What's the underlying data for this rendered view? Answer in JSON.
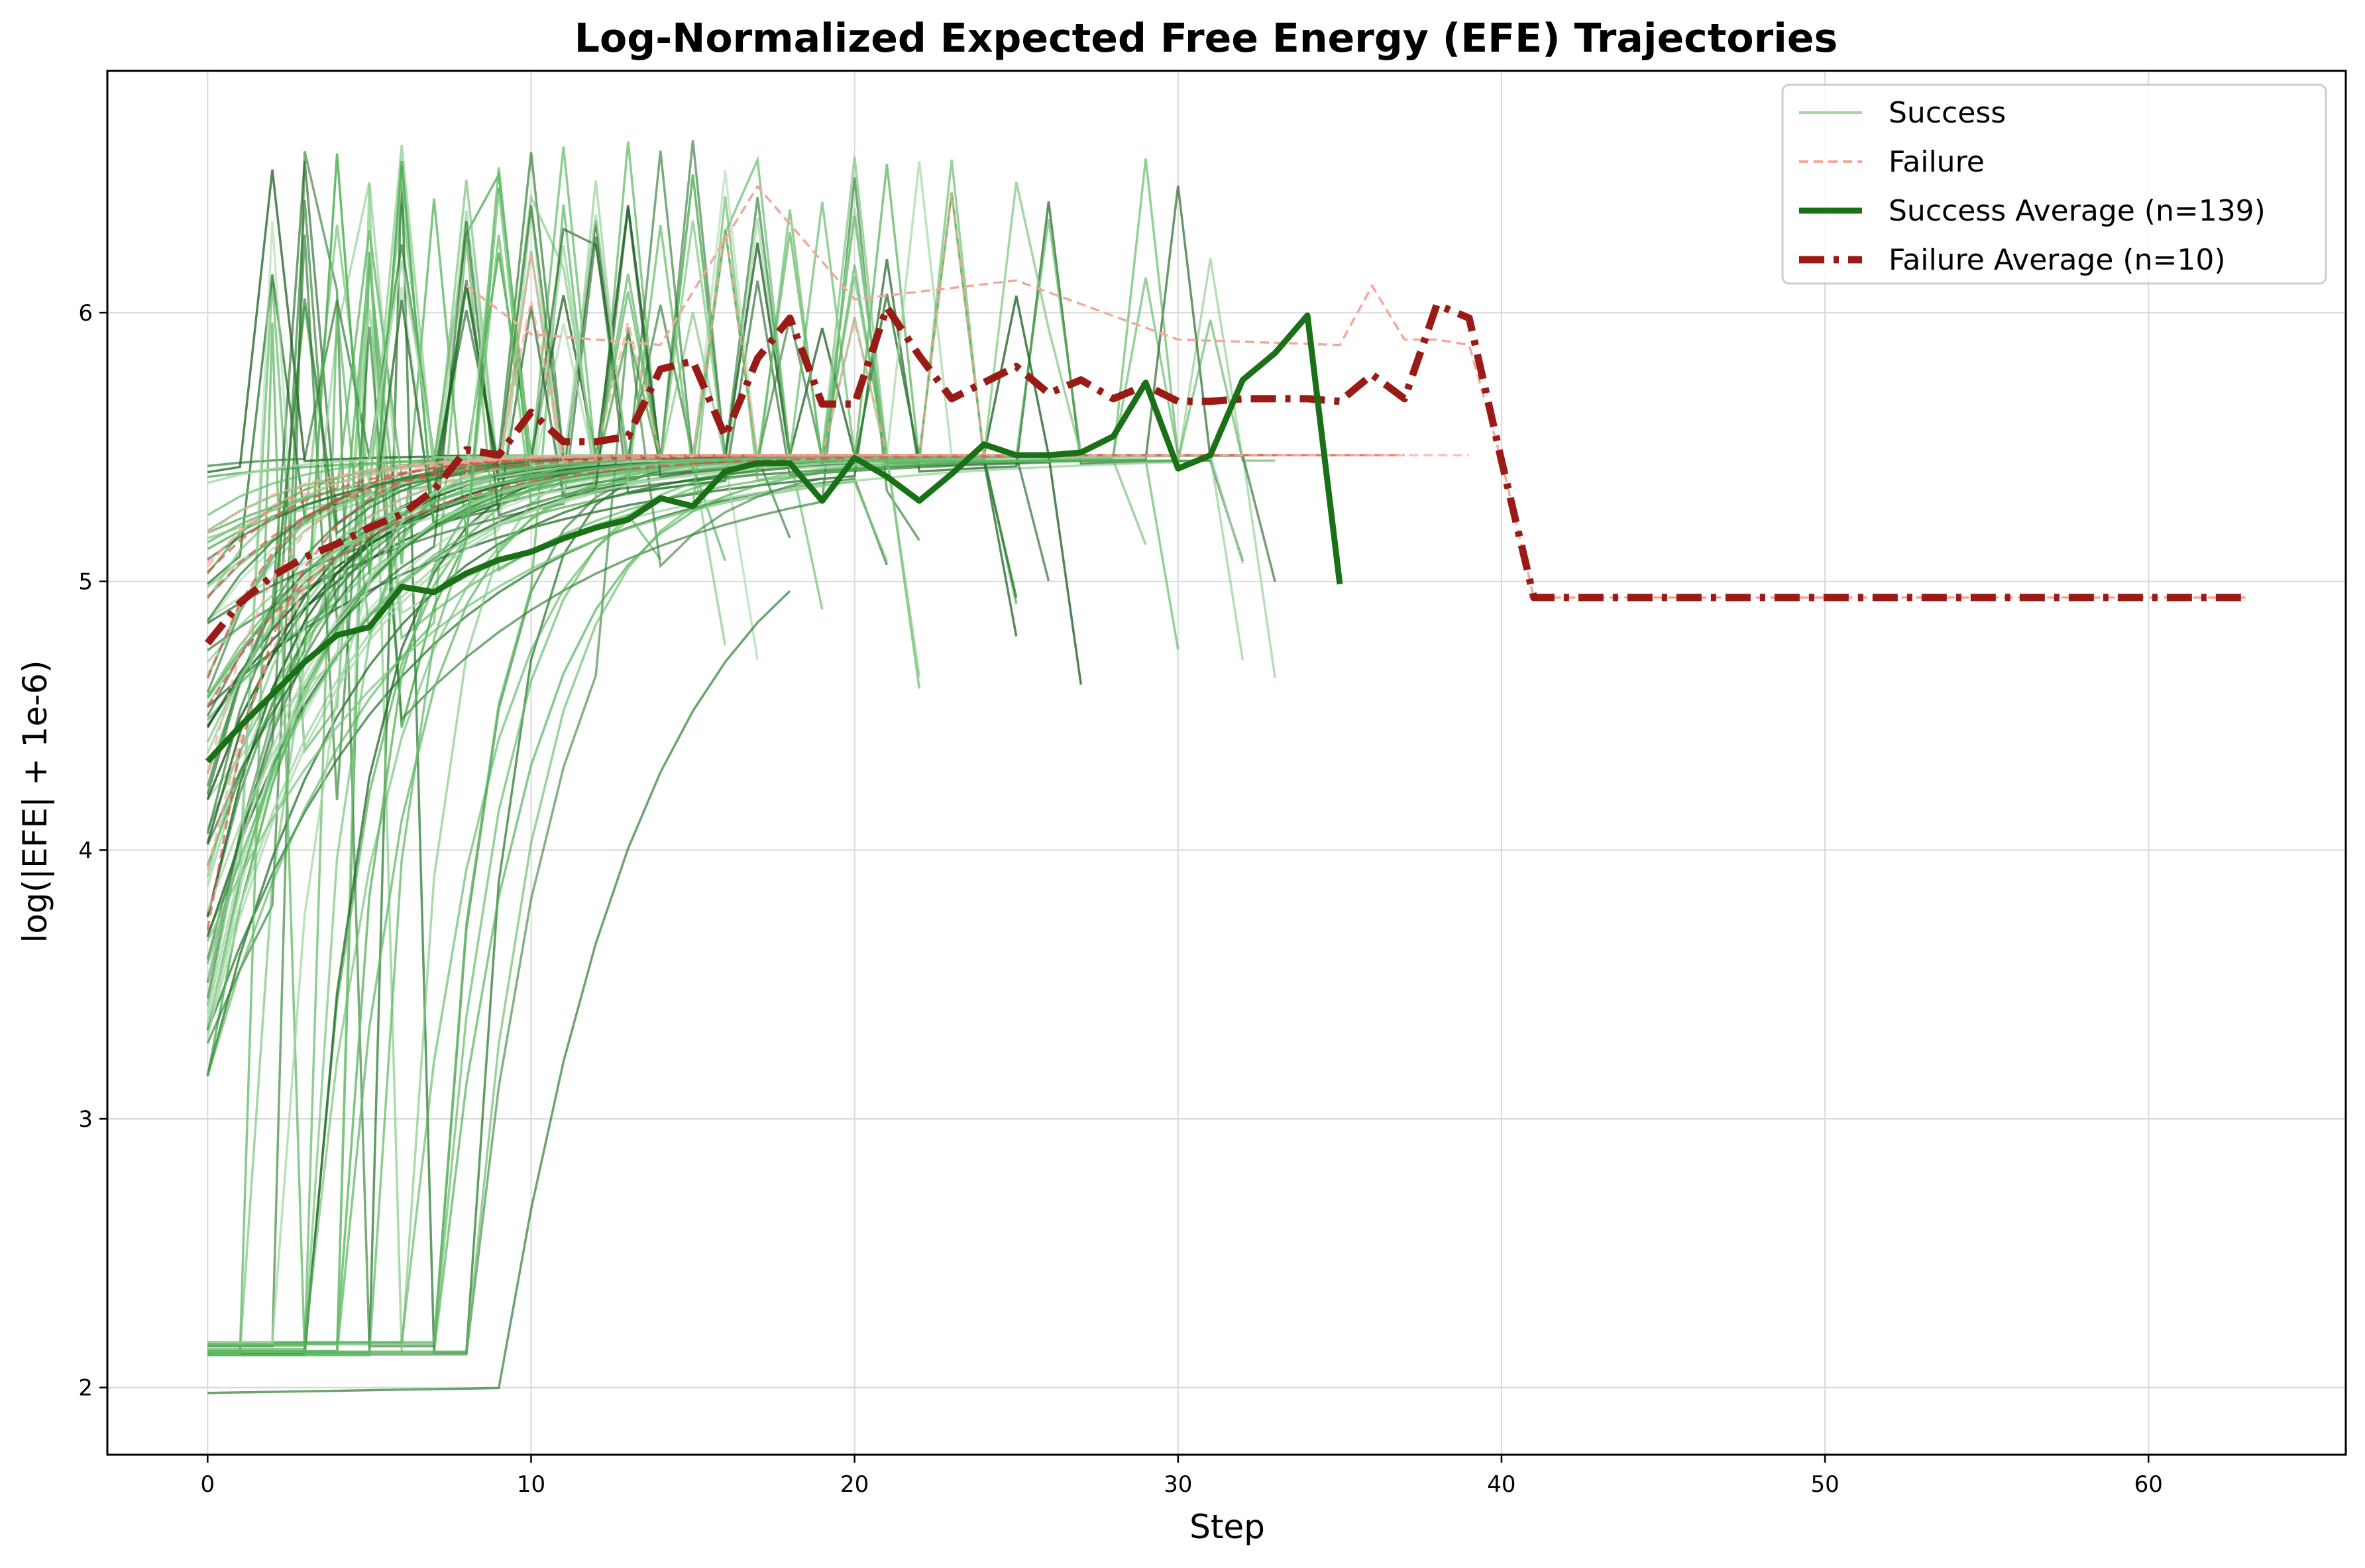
{
  "chart_data": {
    "type": "line",
    "title": "Log-Normalized Expected Free Energy (EFE) Trajectories",
    "xlabel": "Step",
    "ylabel": "log(|EFE| + 1e-6)",
    "xlim": [
      -3.1,
      66.1
    ],
    "ylim": [
      1.75,
      6.9
    ],
    "xticks": [
      0,
      10,
      20,
      30,
      40,
      50,
      60
    ],
    "yticks": [
      2,
      3,
      4,
      5,
      6
    ],
    "grid": true,
    "legend_position": "top-right",
    "colors": {
      "success_individual": "#4caf50",
      "failure_individual": "#f08070",
      "success_average": "#1a7016",
      "failure_average": "#9a1a16"
    },
    "legend": [
      {
        "label": "Success",
        "style": "success-thin"
      },
      {
        "label": "Failure",
        "style": "failure-thin"
      },
      {
        "label": "Success Average (n=139)",
        "style": "success-avg"
      },
      {
        "label": "Failure Average (n=10)",
        "style": "failure-avg"
      }
    ],
    "series": [
      {
        "name": "Success Average (n=139)",
        "x": [
          0,
          1,
          2,
          3,
          4,
          5,
          6,
          7,
          8,
          9,
          10,
          11,
          12,
          13,
          14,
          15,
          16,
          17,
          18,
          19,
          20,
          21,
          22,
          23,
          24,
          25,
          26,
          27,
          28,
          29,
          30,
          31,
          32,
          33,
          34,
          35
        ],
        "y": [
          4.33,
          4.46,
          4.58,
          4.7,
          4.8,
          4.83,
          4.98,
          4.96,
          5.03,
          5.08,
          5.11,
          5.16,
          5.2,
          5.23,
          5.31,
          5.28,
          5.41,
          5.44,
          5.44,
          5.3,
          5.46,
          5.39,
          5.3,
          5.4,
          5.51,
          5.47,
          5.47,
          5.48,
          5.54,
          5.74,
          5.42,
          5.47,
          5.75,
          5.85,
          5.99,
          4.99
        ]
      },
      {
        "name": "Failure Average (n=10)",
        "x": [
          0,
          1,
          2,
          3,
          4,
          5,
          6,
          7,
          8,
          9,
          10,
          11,
          12,
          13,
          14,
          15,
          16,
          17,
          18,
          19,
          20,
          21,
          22,
          23,
          24,
          25,
          26,
          27,
          28,
          29,
          30,
          31,
          32,
          33,
          34,
          35,
          36,
          37,
          38,
          39,
          40,
          41,
          42,
          43,
          44,
          45,
          46,
          47,
          48,
          49,
          50,
          51,
          52,
          53,
          54,
          55,
          56,
          57,
          58,
          59,
          60,
          61,
          62,
          63
        ],
        "y": [
          4.77,
          4.92,
          5.02,
          5.09,
          5.14,
          5.2,
          5.25,
          5.34,
          5.49,
          5.47,
          5.63,
          5.52,
          5.52,
          5.54,
          5.79,
          5.82,
          5.54,
          5.83,
          5.98,
          5.66,
          5.66,
          6.02,
          5.84,
          5.68,
          5.74,
          5.8,
          5.7,
          5.75,
          5.68,
          5.73,
          5.67,
          5.67,
          5.68,
          5.68,
          5.68,
          5.67,
          5.77,
          5.68,
          6.03,
          5.98,
          5.45,
          4.94,
          4.94,
          4.94,
          4.94,
          4.94,
          4.94,
          4.94,
          4.94,
          4.94,
          4.94,
          4.94,
          4.94,
          4.94,
          4.94,
          4.94,
          4.94,
          4.94,
          4.94,
          4.94,
          4.94,
          4.94,
          4.94,
          4.94
        ]
      }
    ]
  }
}
